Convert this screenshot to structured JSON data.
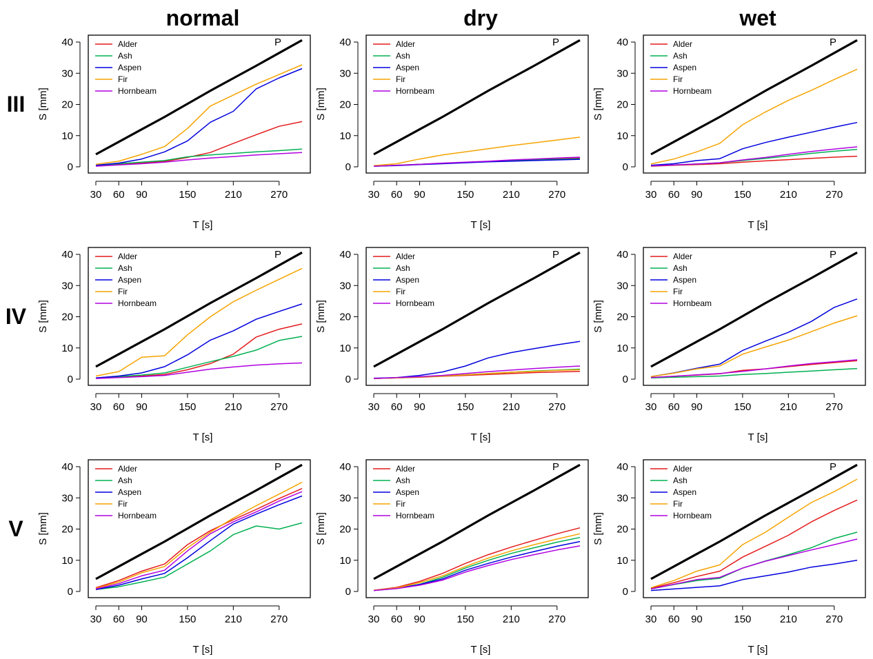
{
  "columns": [
    "normal",
    "dry",
    "wet"
  ],
  "rows": [
    "III",
    "IV",
    "V"
  ],
  "colors": {
    "Alder": "#e41a1c",
    "Ash": "#00b050",
    "Aspen": "#0000dd",
    "Fir": "#f5a300",
    "Hornbeam": "#b000e0",
    "P": "#000000"
  },
  "chart_data": [
    {
      "type": "line",
      "row": "III",
      "column": "normal",
      "xlabel": "T [s]",
      "ylabel": "S [mm]",
      "xlim": [
        30,
        300
      ],
      "ylim": [
        0,
        40
      ],
      "xticks": [
        30,
        60,
        90,
        150,
        210,
        270
      ],
      "yticks": [
        0,
        10,
        20,
        30,
        40
      ],
      "legend": "top-left",
      "annotation": "P",
      "x": [
        30,
        60,
        90,
        120,
        150,
        180,
        210,
        240,
        270,
        300
      ],
      "series": [
        {
          "name": "P",
          "values": [
            4,
            8,
            12,
            16,
            20.2,
            24.4,
            28.4,
            32.4,
            36.5,
            40.6
          ]
        },
        {
          "name": "Alder",
          "values": [
            0.3,
            0.8,
            1.3,
            1.7,
            3,
            4.6,
            7.5,
            10.3,
            13,
            14.5
          ]
        },
        {
          "name": "Ash",
          "values": [
            0.4,
            1,
            1.5,
            2,
            3.2,
            3.8,
            4.3,
            4.8,
            5.2,
            5.7
          ]
        },
        {
          "name": "Aspen",
          "values": [
            0.5,
            1.2,
            2.5,
            4.8,
            8.3,
            14.3,
            17.8,
            25,
            28.5,
            31.5
          ]
        },
        {
          "name": "Fir",
          "values": [
            0.8,
            1.8,
            4,
            6.5,
            12.3,
            19.5,
            23,
            26.5,
            29.6,
            32.7
          ]
        },
        {
          "name": "Hornbeam",
          "values": [
            0.2,
            0.6,
            1,
            1.5,
            2.2,
            2.8,
            3.3,
            3.8,
            4.2,
            4.6
          ]
        }
      ]
    },
    {
      "type": "line",
      "row": "III",
      "column": "dry",
      "xlabel": "T [s]",
      "ylabel": "S [mm]",
      "xlim": [
        30,
        300
      ],
      "ylim": [
        0,
        40
      ],
      "xticks": [
        30,
        60,
        90,
        150,
        210,
        270
      ],
      "yticks": [
        0,
        10,
        20,
        30,
        40
      ],
      "legend": "top-left",
      "annotation": "P",
      "x": [
        30,
        60,
        90,
        120,
        150,
        180,
        210,
        240,
        270,
        300
      ],
      "series": [
        {
          "name": "P",
          "values": [
            4,
            8,
            12,
            16,
            20.2,
            24.4,
            28.4,
            32.4,
            36.5,
            40.6
          ]
        },
        {
          "name": "Alder",
          "values": [
            0.2,
            0.5,
            0.8,
            1.1,
            1.4,
            1.7,
            2,
            2.3,
            2.6,
            2.8
          ]
        },
        {
          "name": "Ash",
          "values": [
            0.2,
            0.5,
            0.8,
            1.1,
            1.4,
            1.7,
            2,
            2.2,
            2.4,
            2.6
          ]
        },
        {
          "name": "Aspen",
          "values": [
            0.2,
            0.4,
            0.7,
            1,
            1.3,
            1.6,
            1.8,
            2,
            2.2,
            2.4
          ]
        },
        {
          "name": "Fir",
          "values": [
            0.4,
            1,
            2.5,
            3.8,
            4.8,
            5.8,
            6.8,
            7.7,
            8.6,
            9.5
          ]
        },
        {
          "name": "Hornbeam",
          "values": [
            0.2,
            0.5,
            0.8,
            1.2,
            1.5,
            1.8,
            2.2,
            2.5,
            2.8,
            3.1
          ]
        }
      ]
    },
    {
      "type": "line",
      "row": "III",
      "column": "wet",
      "xlabel": "T [s]",
      "ylabel": "S [mm]",
      "xlim": [
        30,
        300
      ],
      "ylim": [
        0,
        40
      ],
      "xticks": [
        30,
        60,
        90,
        150,
        210,
        270
      ],
      "yticks": [
        0,
        10,
        20,
        30,
        40
      ],
      "legend": "top-left",
      "annotation": "P",
      "x": [
        30,
        60,
        90,
        120,
        150,
        180,
        210,
        240,
        270,
        300
      ],
      "series": [
        {
          "name": "P",
          "values": [
            4,
            8,
            12,
            16,
            20.2,
            24.4,
            28.4,
            32.4,
            36.5,
            40.6
          ]
        },
        {
          "name": "Alder",
          "values": [
            0.2,
            0.5,
            0.7,
            1,
            1.5,
            1.9,
            2.3,
            2.7,
            3.1,
            3.4
          ]
        },
        {
          "name": "Ash",
          "values": [
            0.3,
            0.6,
            0.9,
            1.3,
            2,
            2.7,
            3.5,
            4.3,
            5,
            5.6
          ]
        },
        {
          "name": "Aspen",
          "values": [
            0.5,
            1,
            2,
            2.6,
            5.8,
            7.8,
            9.5,
            11.1,
            12.7,
            14.2
          ]
        },
        {
          "name": "Fir",
          "values": [
            0.9,
            2.5,
            4.8,
            7.5,
            13.5,
            17.6,
            21.3,
            24.5,
            28,
            31.3
          ]
        },
        {
          "name": "Hornbeam",
          "values": [
            0.3,
            0.6,
            0.9,
            1.3,
            2.2,
            3,
            4,
            4.9,
            5.7,
            6.4
          ]
        }
      ]
    },
    {
      "type": "line",
      "row": "IV",
      "column": "normal",
      "xlabel": "T [s]",
      "ylabel": "S [mm]",
      "xlim": [
        30,
        300
      ],
      "ylim": [
        0,
        40
      ],
      "xticks": [
        30,
        60,
        90,
        150,
        210,
        270
      ],
      "yticks": [
        0,
        10,
        20,
        30,
        40
      ],
      "legend": "top-left",
      "annotation": "P",
      "x": [
        30,
        60,
        90,
        120,
        150,
        180,
        210,
        240,
        270,
        300
      ],
      "series": [
        {
          "name": "P",
          "values": [
            4,
            8,
            12,
            16,
            20.2,
            24.4,
            28.4,
            32.4,
            36.5,
            40.6
          ]
        },
        {
          "name": "Alder",
          "values": [
            0.3,
            0.6,
            1,
            1.5,
            3,
            5,
            8,
            13.5,
            16,
            17.7
          ]
        },
        {
          "name": "Ash",
          "values": [
            0.4,
            0.8,
            1.3,
            2,
            3.8,
            5.6,
            7.3,
            9.3,
            12.4,
            13.7
          ]
        },
        {
          "name": "Aspen",
          "values": [
            0.4,
            1,
            2,
            4,
            7.8,
            12.5,
            15.5,
            19.2,
            21.7,
            24.1
          ]
        },
        {
          "name": "Fir",
          "values": [
            1,
            2.4,
            7,
            7.5,
            14.2,
            20,
            24.8,
            28.5,
            32,
            35.5
          ]
        },
        {
          "name": "Hornbeam",
          "values": [
            0.2,
            0.5,
            0.8,
            1.2,
            2.2,
            3.2,
            3.9,
            4.5,
            4.9,
            5.2
          ]
        }
      ]
    },
    {
      "type": "line",
      "row": "IV",
      "column": "dry",
      "xlabel": "T [s]",
      "ylabel": "S [mm]",
      "xlim": [
        30,
        300
      ],
      "ylim": [
        0,
        40
      ],
      "xticks": [
        30,
        60,
        90,
        150,
        210,
        270
      ],
      "yticks": [
        0,
        10,
        20,
        30,
        40
      ],
      "legend": "top-left",
      "annotation": "P",
      "x": [
        30,
        60,
        90,
        120,
        150,
        180,
        210,
        240,
        270,
        300
      ],
      "series": [
        {
          "name": "P",
          "values": [
            4,
            8,
            12,
            16,
            20.2,
            24.4,
            28.4,
            32.4,
            36.5,
            40.6
          ]
        },
        {
          "name": "Alder",
          "values": [
            0.2,
            0.4,
            0.6,
            0.9,
            1.2,
            1.5,
            1.8,
            2.1,
            2.3,
            2.5
          ]
        },
        {
          "name": "Ash",
          "values": [
            0.2,
            0.4,
            0.7,
            1,
            1.4,
            1.8,
            2.2,
            2.6,
            2.9,
            3.2
          ]
        },
        {
          "name": "Aspen",
          "values": [
            0.3,
            0.5,
            1.2,
            2.3,
            4.2,
            6.8,
            8.5,
            9.8,
            11,
            12.1
          ]
        },
        {
          "name": "Fir",
          "values": [
            0.2,
            0.4,
            0.7,
            1,
            1.4,
            1.8,
            2.2,
            2.5,
            2.8,
            3
          ]
        },
        {
          "name": "Hornbeam",
          "values": [
            0.2,
            0.5,
            0.8,
            1.2,
            1.8,
            2.4,
            2.9,
            3.4,
            3.8,
            4.2
          ]
        }
      ]
    },
    {
      "type": "line",
      "row": "IV",
      "column": "wet",
      "xlabel": "T [s]",
      "ylabel": "S [mm]",
      "xlim": [
        30,
        300
      ],
      "ylim": [
        0,
        40
      ],
      "xticks": [
        30,
        60,
        90,
        150,
        210,
        270
      ],
      "yticks": [
        0,
        10,
        20,
        30,
        40
      ],
      "legend": "top-left",
      "annotation": "P",
      "x": [
        30,
        60,
        90,
        120,
        150,
        180,
        210,
        240,
        270,
        300
      ],
      "series": [
        {
          "name": "P",
          "values": [
            4,
            8,
            12,
            16,
            20.2,
            24.4,
            28.4,
            32.4,
            36.5,
            40.6
          ]
        },
        {
          "name": "Alder",
          "values": [
            0.5,
            0.9,
            1.3,
            1.7,
            2.8,
            3.3,
            4,
            4.7,
            5.3,
            5.9
          ]
        },
        {
          "name": "Ash",
          "values": [
            0.4,
            0.6,
            0.8,
            1,
            1.5,
            1.8,
            2.2,
            2.6,
            3,
            3.4
          ]
        },
        {
          "name": "Aspen",
          "values": [
            0.8,
            2,
            3.5,
            4.8,
            9.2,
            12.2,
            15,
            18.5,
            23,
            25.7
          ]
        },
        {
          "name": "Fir",
          "values": [
            0.8,
            1.9,
            3.3,
            4.2,
            8,
            10.3,
            12.5,
            15.2,
            18,
            20.3
          ]
        },
        {
          "name": "Hornbeam",
          "values": [
            0.5,
            0.9,
            1.4,
            1.8,
            2.5,
            3.3,
            4.2,
            5,
            5.6,
            6.2
          ]
        }
      ]
    },
    {
      "type": "line",
      "row": "V",
      "column": "normal",
      "xlabel": "T [s]",
      "ylabel": "S [mm]",
      "xlim": [
        30,
        300
      ],
      "ylim": [
        0,
        40
      ],
      "xticks": [
        30,
        60,
        90,
        150,
        210,
        270
      ],
      "yticks": [
        0,
        10,
        20,
        30,
        40
      ],
      "legend": "top-left",
      "annotation": "P",
      "x": [
        30,
        60,
        90,
        120,
        150,
        180,
        210,
        240,
        270,
        300
      ],
      "series": [
        {
          "name": "P",
          "values": [
            4,
            8,
            12,
            16,
            20.2,
            24.4,
            28.4,
            32.4,
            36.5,
            40.6
          ]
        },
        {
          "name": "Alder",
          "values": [
            1.2,
            3.5,
            6.5,
            8.8,
            15,
            19.5,
            23,
            26.3,
            29.8,
            33
          ]
        },
        {
          "name": "Ash",
          "values": [
            0.6,
            1.5,
            3,
            4.6,
            8.8,
            13,
            18.2,
            21,
            20,
            22
          ]
        },
        {
          "name": "Aspen",
          "values": [
            0.6,
            2,
            4,
            5.8,
            10.8,
            16.3,
            21.6,
            24.8,
            27.8,
            30.6
          ]
        },
        {
          "name": "Fir",
          "values": [
            1,
            3,
            6,
            8,
            14,
            19,
            23.5,
            27.5,
            31.2,
            35
          ]
        },
        {
          "name": "Hornbeam",
          "values": [
            0.8,
            2.5,
            5,
            6.8,
            13,
            18.5,
            22.3,
            25.5,
            29,
            32
          ]
        }
      ]
    },
    {
      "type": "line",
      "row": "V",
      "column": "dry",
      "xlabel": "T [s]",
      "ylabel": "S [mm]",
      "xlim": [
        30,
        300
      ],
      "ylim": [
        0,
        40
      ],
      "xticks": [
        30,
        60,
        90,
        150,
        210,
        270
      ],
      "yticks": [
        0,
        10,
        20,
        30,
        40
      ],
      "legend": "top-left",
      "annotation": "P",
      "x": [
        30,
        60,
        90,
        120,
        150,
        180,
        210,
        240,
        270,
        300
      ],
      "series": [
        {
          "name": "P",
          "values": [
            4,
            8,
            12,
            16,
            20.2,
            24.4,
            28.4,
            32.4,
            36.5,
            40.6
          ]
        },
        {
          "name": "Alder",
          "values": [
            0.4,
            1.3,
            3.2,
            5.8,
            9,
            11.8,
            14.2,
            16.4,
            18.5,
            20.4
          ]
        },
        {
          "name": "Ash",
          "values": [
            0.3,
            1,
            2.3,
            4.5,
            7.5,
            10,
            12.2,
            14,
            15.8,
            17.3
          ]
        },
        {
          "name": "Aspen",
          "values": [
            0.3,
            1,
            2.2,
            4,
            6.8,
            9,
            11,
            12.8,
            14.5,
            16
          ]
        },
        {
          "name": "Fir",
          "values": [
            0.4,
            1.1,
            2.8,
            5,
            8,
            10.7,
            13,
            15,
            16.8,
            18.5
          ]
        },
        {
          "name": "Hornbeam",
          "values": [
            0.3,
            0.9,
            2,
            3.6,
            6.2,
            8.3,
            10.2,
            11.8,
            13.3,
            14.6
          ]
        }
      ]
    },
    {
      "type": "line",
      "row": "V",
      "column": "wet",
      "xlabel": "T [s]",
      "ylabel": "S [mm]",
      "xlim": [
        30,
        300
      ],
      "ylim": [
        0,
        40
      ],
      "xticks": [
        30,
        60,
        90,
        150,
        210,
        270
      ],
      "yticks": [
        0,
        10,
        20,
        30,
        40
      ],
      "legend": "top-left",
      "annotation": "P",
      "x": [
        30,
        60,
        90,
        120,
        150,
        180,
        210,
        240,
        270,
        300
      ],
      "series": [
        {
          "name": "P",
          "values": [
            4,
            8,
            12,
            16,
            20.2,
            24.4,
            28.4,
            32.4,
            36.5,
            40.6
          ]
        },
        {
          "name": "Alder",
          "values": [
            1,
            2.8,
            4.8,
            6.5,
            11,
            14.5,
            18,
            22.3,
            26,
            29.3
          ]
        },
        {
          "name": "Ash",
          "values": [
            0.8,
            2.2,
            3.5,
            4.2,
            7.5,
            9.8,
            11.8,
            14,
            17,
            19
          ]
        },
        {
          "name": "Aspen",
          "values": [
            0.3,
            0.8,
            1.3,
            1.8,
            3.8,
            5,
            6.2,
            7.8,
            8.8,
            10
          ]
        },
        {
          "name": "Fir",
          "values": [
            1.2,
            3.5,
            6.5,
            8.5,
            15,
            19,
            23.8,
            28.5,
            32,
            36
          ]
        },
        {
          "name": "Hornbeam",
          "values": [
            0.8,
            2.3,
            3.8,
            4.5,
            7.5,
            9.7,
            11.5,
            13.3,
            15,
            16.8
          ]
        }
      ]
    }
  ]
}
